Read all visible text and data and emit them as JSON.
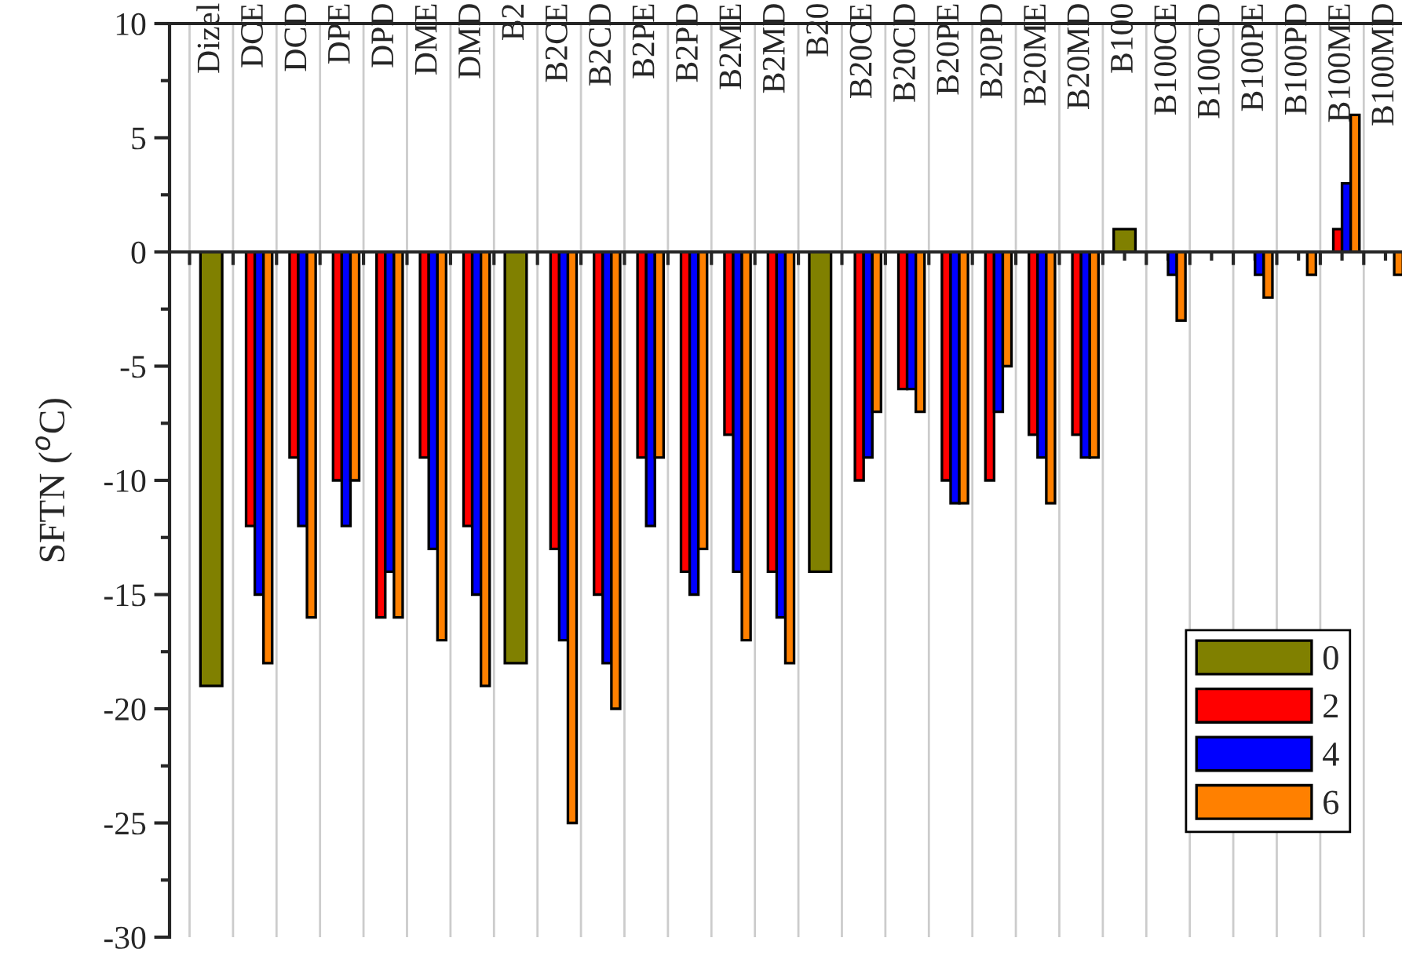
{
  "chart_data": {
    "type": "bar",
    "ylabel": "SFTN ($^{o}$C)",
    "categories": [
      "Dizel",
      "DCE",
      "DCD",
      "DPE",
      "DPD",
      "DME",
      "DMD",
      "B2",
      "B2CE",
      "B2CD",
      "B2PE",
      "B2PD",
      "B2ME",
      "B2MD",
      "B20",
      "B20CE",
      "B20CD",
      "B20PE",
      "B20PD",
      "B20ME",
      "B20MD",
      "B100",
      "B100CE",
      "B100CD",
      "B100PE",
      "B100PD",
      "B100ME",
      "B100MD"
    ],
    "series": [
      {
        "name": "0",
        "color": "#808000",
        "values": [
          -19,
          null,
          null,
          null,
          null,
          null,
          null,
          -18,
          null,
          null,
          null,
          null,
          null,
          null,
          -14,
          null,
          null,
          null,
          null,
          null,
          null,
          1,
          null,
          null,
          null,
          null,
          null,
          null
        ]
      },
      {
        "name": "2",
        "color": "#ff0000",
        "values": [
          null,
          -12,
          -9,
          -10,
          -16,
          -9,
          -12,
          null,
          -13,
          -15,
          -9,
          -14,
          -8,
          -14,
          null,
          -10,
          -6,
          -10,
          -10,
          -8,
          -8,
          null,
          null,
          null,
          null,
          null,
          1,
          null
        ]
      },
      {
        "name": "4",
        "color": "#0000ff",
        "values": [
          null,
          -15,
          -12,
          -12,
          -14,
          -13,
          -15,
          null,
          -17,
          -18,
          -12,
          -15,
          -14,
          -16,
          null,
          -9,
          -6,
          -11,
          -7,
          -9,
          -9,
          null,
          -1,
          null,
          -1,
          null,
          3,
          null
        ]
      },
      {
        "name": "6",
        "color": "#ff8000",
        "values": [
          null,
          -18,
          -16,
          -10,
          -16,
          -17,
          -19,
          null,
          -25,
          -20,
          -9,
          -13,
          -17,
          -18,
          null,
          -7,
          -7,
          -11,
          -5,
          -11,
          -9,
          null,
          -3,
          null,
          -2,
          -1,
          6,
          -1
        ]
      }
    ],
    "ylim": [
      -30,
      10
    ],
    "yticks": [
      -30,
      -25,
      -20,
      -15,
      -10,
      -5,
      0,
      5,
      10
    ],
    "grid": "x",
    "legend": "bottom right"
  }
}
